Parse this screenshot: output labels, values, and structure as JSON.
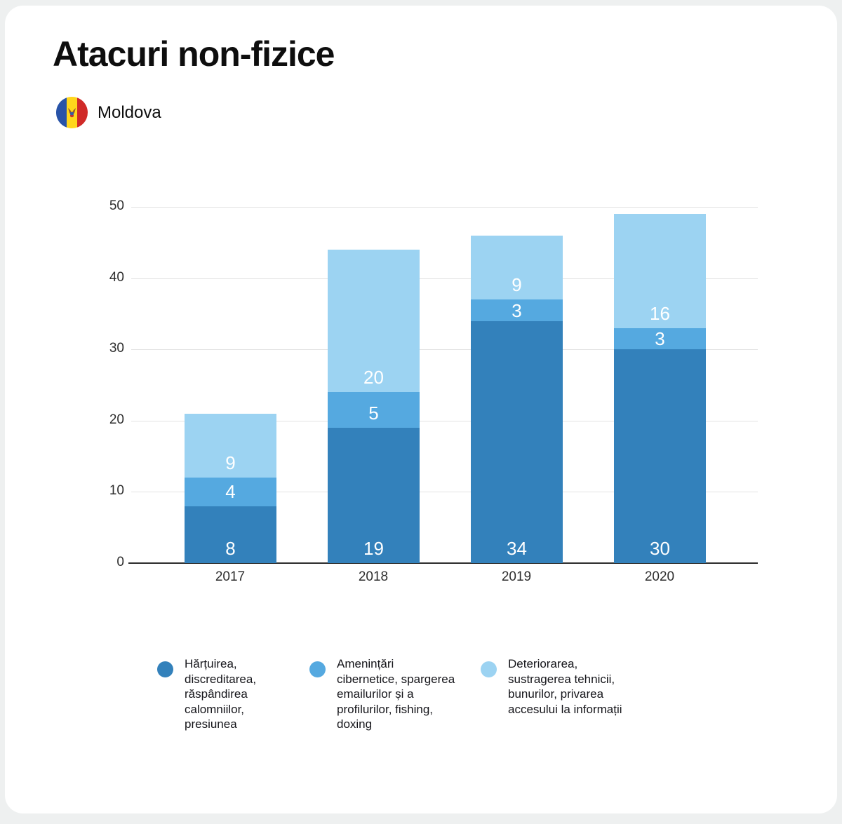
{
  "page": {
    "title": "Atacuri non-fizice",
    "country": "Moldova",
    "flag_icon": "moldova-flag-icon"
  },
  "colors": {
    "axis": "#2d2d2d",
    "grid": "#e3e3e3",
    "value_label": "#ffffff",
    "text": "#15151a",
    "card_background": "#ffffff"
  },
  "chart_data": {
    "type": "bar",
    "stacked": true,
    "title": "Atacuri non-fizice",
    "categories": [
      "2017",
      "2018",
      "2019",
      "2020"
    ],
    "series": [
      {
        "name": "Hărțuirea, discreditarea, răspândirea calomniilor, presiunea",
        "color": "#3381BB",
        "values": [
          8,
          19,
          34,
          30
        ]
      },
      {
        "name": "Amenințări cibernetice, spargerea emailurilor și a profilurilor, fishing, doxing",
        "color": "#55A9E0",
        "values": [
          4,
          5,
          3,
          3
        ]
      },
      {
        "name": "Deteriorarea, sustragerea tehnicii, bunurilor, privarea accesului la informații",
        "color": "#9CD3F2",
        "values": [
          9,
          20,
          9,
          16
        ]
      }
    ],
    "totals": [
      21,
      44,
      46,
      49
    ],
    "ylim": [
      0,
      50
    ],
    "yticks": [
      0,
      10,
      20,
      30,
      40,
      50
    ],
    "grid": true,
    "value_labels": "inside-bottom",
    "legend_position": "bottom"
  }
}
